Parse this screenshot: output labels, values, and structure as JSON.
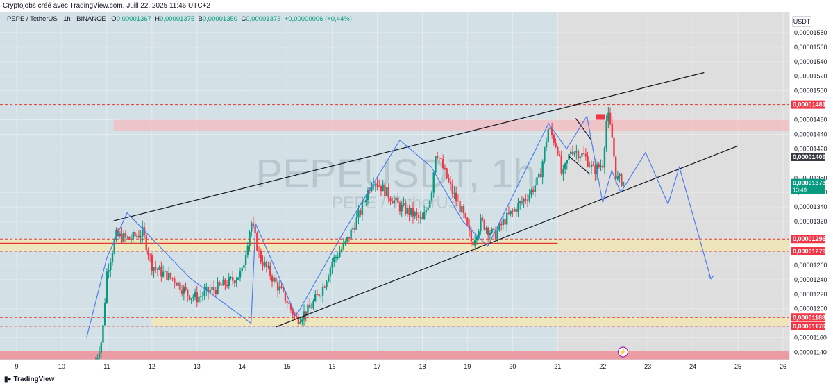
{
  "header": {
    "attribution": "Cryptojobs créé avec TradingView.com, Juill 22, 2025 11:46 UTC+2"
  },
  "legend": {
    "symbol": "PEPE / TetherUS · 1h · BINANCE",
    "o_label": "O",
    "o_value": "0,00001367",
    "h_label": "H",
    "h_value": "0,00001375",
    "b_label": "B",
    "b_value": "0,00001350",
    "c_label": "C",
    "c_value": "0,00001373",
    "change": "+0,00000006 (+0,44%)"
  },
  "currency": "USDT",
  "footer": {
    "brand": "TradingView"
  },
  "colors": {
    "up": "#089981",
    "down": "#f23645",
    "path": "#4c7ef0",
    "channel": "#131722",
    "red_zone": "#f6b9bd",
    "yellow_zone": "#f2e6b4",
    "left_bg": "#d3e1e6",
    "right_bg": "#dedede"
  },
  "chart_data": {
    "type": "candlestick",
    "watermark": "PEPEUSDT, 1h",
    "watermark_sub": "PEPE / TetherUS",
    "x_axis": {
      "ticks": [
        "9",
        "10",
        "11",
        "12",
        "13",
        "14",
        "15",
        "16",
        "17",
        "18",
        "19",
        "20",
        "21",
        "22",
        "23",
        "24",
        "25",
        "26"
      ],
      "range_days": [
        9,
        26
      ]
    },
    "y_axis": {
      "range": [
        1.13e-05,
        1.6e-05
      ],
      "ticks": [
        "0,00001580",
        "0,00001560",
        "0,00001540",
        "0,00001520",
        "0,00001500",
        "0,00001460",
        "0,00001440",
        "0,00001420",
        "0,00001380",
        "0,00001360",
        "0,00001340",
        "0,00001320",
        "0,00001260",
        "0,00001240",
        "0,00001220",
        "0,00001200",
        "0,00001160",
        "0,00001140"
      ]
    },
    "price_labels": [
      {
        "value": "0,00001481",
        "style": "red"
      },
      {
        "value": "0,00001409",
        "style": "dark"
      },
      {
        "value": "0,00001373",
        "sub": "13:49",
        "style": "green"
      },
      {
        "value": "0,00001296",
        "style": "red"
      },
      {
        "value": "0,00001279",
        "style": "red"
      },
      {
        "value": "0,00001188",
        "style": "red"
      },
      {
        "value": "0,00001176",
        "style": "red"
      }
    ],
    "close_path": [
      [
        10.75,
        1128
      ],
      [
        10.9,
        1160
      ],
      [
        11.0,
        1250
      ],
      [
        11.2,
        1300
      ],
      [
        11.5,
        1296
      ],
      [
        11.8,
        1305
      ],
      [
        12.0,
        1260
      ],
      [
        12.2,
        1250
      ],
      [
        12.5,
        1240
      ],
      [
        12.8,
        1220
      ],
      [
        13.0,
        1215
      ],
      [
        13.3,
        1225
      ],
      [
        13.5,
        1230
      ],
      [
        13.8,
        1240
      ],
      [
        14.0,
        1250
      ],
      [
        14.2,
        1320
      ],
      [
        14.4,
        1270
      ],
      [
        14.7,
        1240
      ],
      [
        15.0,
        1210
      ],
      [
        15.2,
        1185
      ],
      [
        15.5,
        1200
      ],
      [
        15.8,
        1230
      ],
      [
        16.0,
        1265
      ],
      [
        16.3,
        1290
      ],
      [
        16.6,
        1330
      ],
      [
        16.9,
        1380
      ],
      [
        17.2,
        1360
      ],
      [
        17.5,
        1340
      ],
      [
        17.8,
        1330
      ],
      [
        18.0,
        1320
      ],
      [
        18.2,
        1360
      ],
      [
        18.3,
        1420
      ],
      [
        18.6,
        1370
      ],
      [
        18.9,
        1330
      ],
      [
        19.1,
        1290
      ],
      [
        19.3,
        1320
      ],
      [
        19.6,
        1300
      ],
      [
        19.8,
        1320
      ],
      [
        20.1,
        1340
      ],
      [
        20.4,
        1360
      ],
      [
        20.6,
        1380
      ],
      [
        20.8,
        1450
      ],
      [
        21.0,
        1420
      ],
      [
        21.1,
        1380
      ],
      [
        21.3,
        1420
      ],
      [
        21.6,
        1410
      ],
      [
        21.8,
        1390
      ],
      [
        22.0,
        1400
      ],
      [
        22.1,
        1470
      ],
      [
        22.2,
        1440
      ],
      [
        22.3,
        1380
      ],
      [
        22.5,
        1373
      ]
    ],
    "zones": {
      "resistance": [
        1.445e-05,
        1.46e-05
      ],
      "upper_support": [
        1.279e-05,
        1.296e-05
      ],
      "lower_support": [
        1.176e-05,
        1.188e-05
      ],
      "bottom": [
        1.13e-05,
        1.142e-05
      ]
    },
    "channel": {
      "upper": [
        [
          11.15,
          1.321e-05
        ],
        [
          24.25,
          1.525e-05
        ]
      ],
      "lower": [
        [
          14.75,
          1.175e-05
        ],
        [
          25.0,
          1.424e-05
        ]
      ]
    },
    "projection_path": [
      [
        10.55,
        1160
      ],
      [
        11.0,
        1270
      ],
      [
        11.45,
        1332
      ],
      [
        12.85,
        1242
      ],
      [
        14.2,
        1180
      ],
      [
        14.3,
        1317
      ],
      [
        15.2,
        1190
      ],
      [
        16.2,
        1300
      ],
      [
        17.5,
        1432
      ],
      [
        18.2,
        1395
      ],
      [
        18.9,
        1320
      ],
      [
        19.45,
        1286
      ],
      [
        20.8,
        1455
      ],
      [
        21.2,
        1420
      ],
      [
        21.65,
        1465
      ],
      [
        22.0,
        1346
      ],
      [
        22.2,
        1390
      ],
      [
        22.4,
        1360
      ],
      [
        22.95,
        1415
      ],
      [
        23.45,
        1344
      ],
      [
        23.7,
        1395
      ],
      [
        24.4,
        1241
      ]
    ]
  }
}
